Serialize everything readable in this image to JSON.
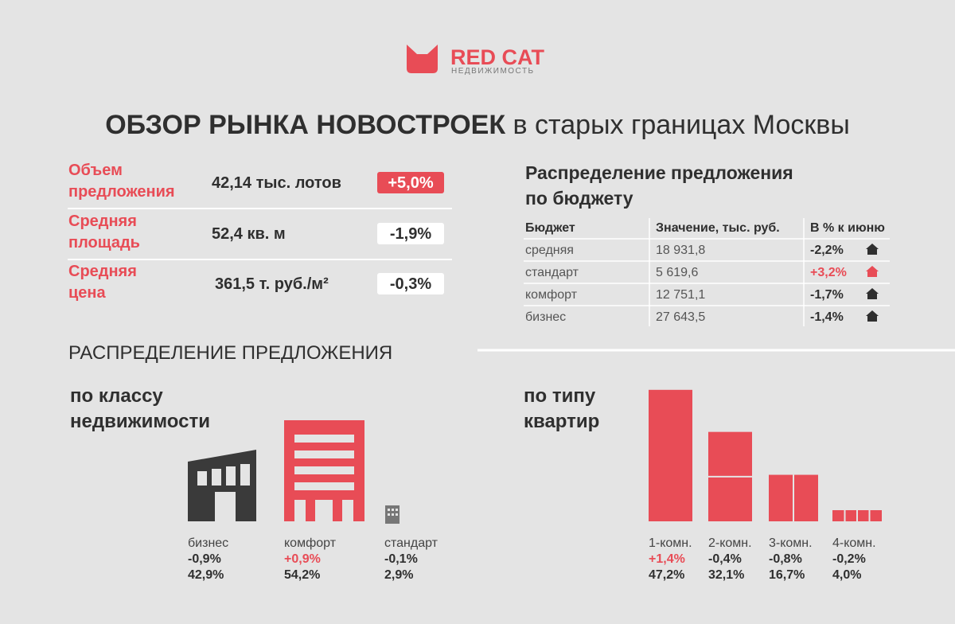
{
  "logo": {
    "brand": "RED CAT",
    "tagline": "НЕДВИЖИМОСТЬ"
  },
  "title": {
    "bold": "ОБЗОР РЫНКА НОВОСТРОЕК",
    "regular": "в старых границах Москвы"
  },
  "metrics": [
    {
      "label": [
        "Объем",
        "предложения"
      ],
      "value": "42,14 тыс. лотов",
      "change": "+5,0%"
    },
    {
      "label": [
        "Средняя",
        "площадь"
      ],
      "value": "52,4  кв. м",
      "change": "-1,9%"
    },
    {
      "label": [
        "Средняя",
        "цена"
      ],
      "value": "361,5 т. руб./м²",
      "change": "-0,3%"
    }
  ],
  "budget": {
    "title": [
      "Распределение предложения",
      "по бюджету"
    ],
    "columns": [
      "Бюджет",
      "Значение, тыс. руб.",
      "В % к июню"
    ],
    "rows": [
      [
        "средняя",
        "18 931,8",
        "-2,2%"
      ],
      [
        "стандарт",
        "5 619,6",
        "+3,2%"
      ],
      [
        "комфорт",
        "12 751,1",
        "-1,7%"
      ],
      [
        "бизнес",
        "27 643,5",
        "-1,4%"
      ]
    ]
  },
  "section_title": "РАСПРЕДЕЛЕНИЕ ПРЕДЛОЖЕНИЯ",
  "by_class": {
    "title": [
      "по классу",
      "недвижимости"
    ],
    "items": [
      {
        "name": "бизнес",
        "change": "-0,9%",
        "share": "42,9%"
      },
      {
        "name": "комфорт",
        "change": "+0,9%",
        "share": "54,2%"
      },
      {
        "name": "стандарт",
        "change": "-0,1%",
        "share": "2,9%"
      }
    ]
  },
  "chart_data": {
    "type": "bar",
    "title": [
      "по типу",
      "квартир"
    ],
    "categories": [
      "1-комн.",
      "2-комн.",
      "3-комн.",
      "4-комн."
    ],
    "changes": [
      "+1,4%",
      "-0,4%",
      "-0,8%",
      "-0,2%"
    ],
    "values": [
      47.2,
      32.1,
      16.7,
      4.0
    ],
    "value_labels": [
      "47,2%",
      "32,1%",
      "16,7%",
      "4,0%"
    ],
    "color": "#e84c56"
  }
}
